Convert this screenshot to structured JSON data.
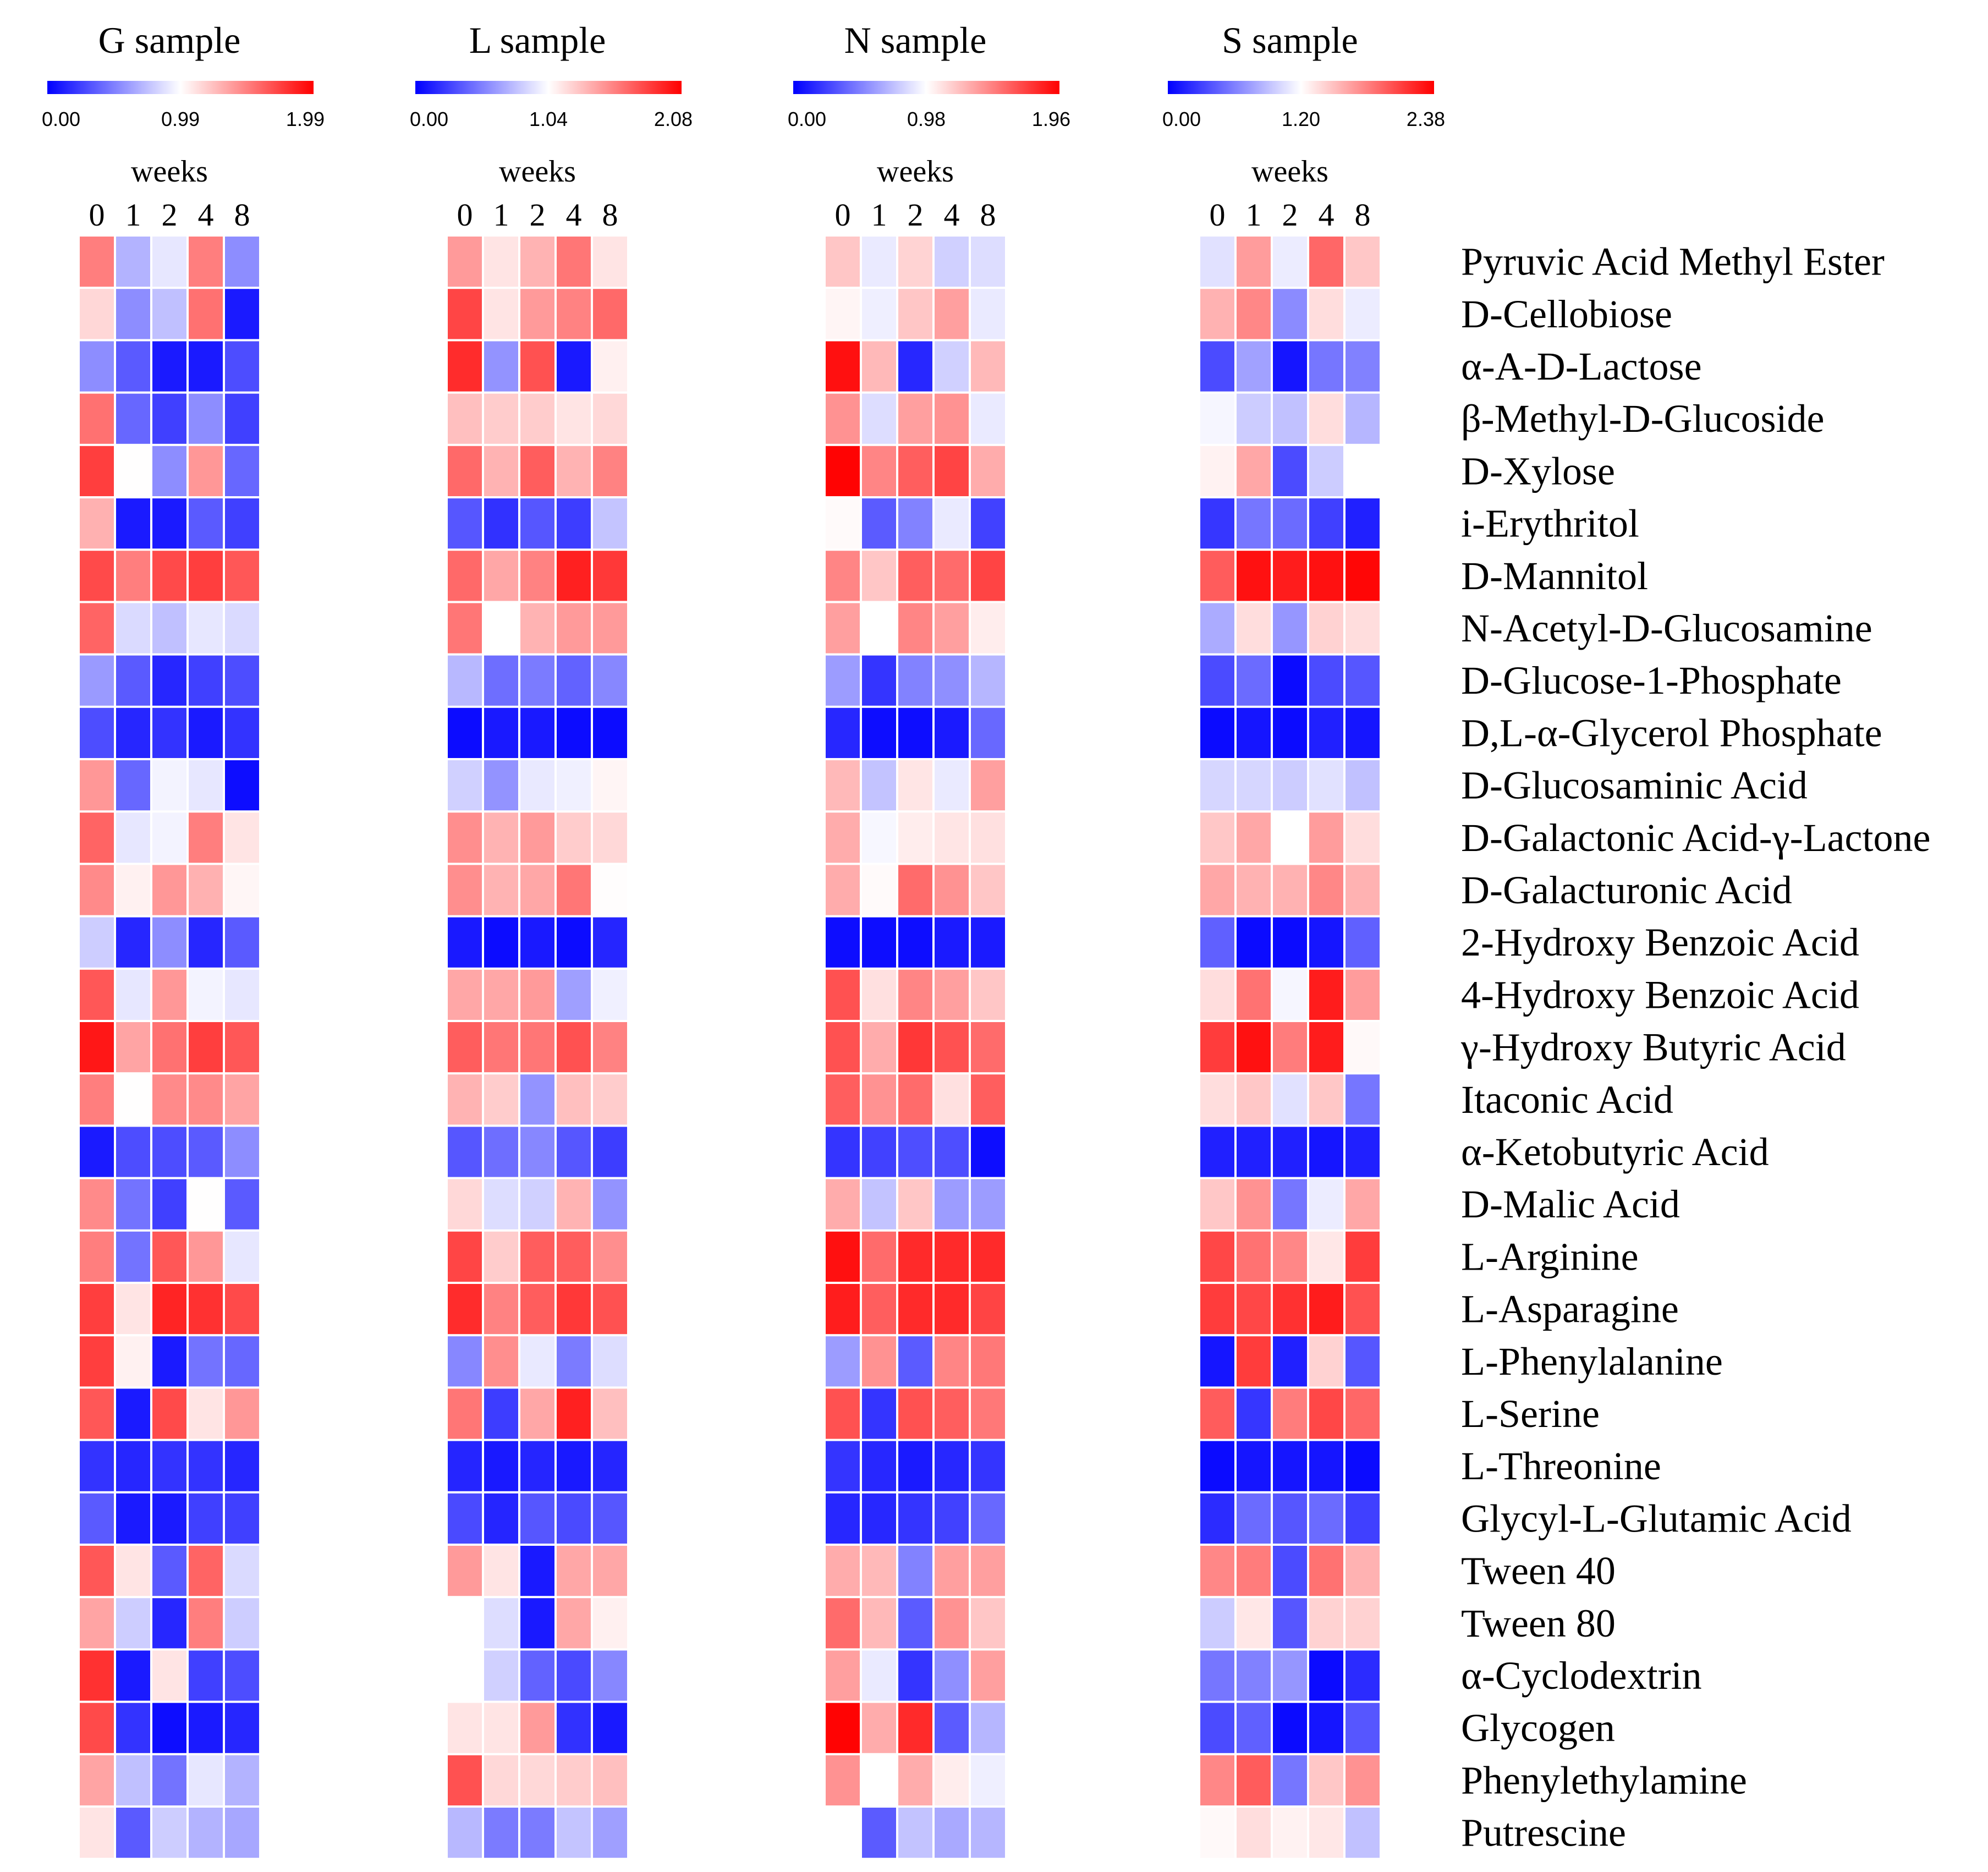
{
  "chart_data": {
    "type": "heatmap",
    "color_scale": {
      "low": "#0000ff",
      "mid": "#ffffff",
      "high": "#ff0000"
    },
    "x_title": "weeks",
    "x": [
      "0",
      "1",
      "2",
      "4",
      "8"
    ],
    "rows": [
      "Pyruvic Acid Methyl Ester",
      "D-Cellobiose",
      "α-A-D-Lactose",
      "β-Methyl-D-Glucoside",
      "D-Xylose",
      "i-Erythritol",
      "D-Mannitol",
      "N-Acetyl-D-Glucosamine",
      "D-Glucose-1-Phosphate",
      "D,L-α-Glycerol Phosphate",
      "D-Glucosaminic Acid",
      "D-Galactonic Acid-γ-Lactone",
      "D-Galacturonic Acid",
      "2-Hydroxy Benzoic Acid",
      "4-Hydroxy Benzoic Acid",
      "γ-Hydroxy Butyric Acid",
      "Itaconic Acid",
      "α-Ketobutyric Acid",
      "D-Malic Acid",
      "L-Arginine",
      "L-Asparagine",
      "L-Phenylalanine",
      "L-Serine",
      "L-Threonine",
      "Glycyl-L-Glutamic Acid",
      "Tween 40",
      "Tween 80",
      "α-Cyclodextrin",
      "Glycogen",
      "Phenylethylamine",
      "Putrescine"
    ],
    "panels": [
      {
        "title": "G sample",
        "min_label": "0.00",
        "mid_label": "0.99",
        "max_label": "1.99",
        "min": 0.0,
        "max": 1.99,
        "values": [
          [
            1.5,
            0.7,
            0.9,
            1.5,
            0.55
          ],
          [
            1.15,
            0.55,
            0.75,
            1.55,
            0.1
          ],
          [
            0.55,
            0.35,
            0.1,
            0.1,
            0.3
          ],
          [
            1.55,
            0.4,
            0.25,
            0.55,
            0.25
          ],
          [
            1.75,
            1.0,
            0.55,
            1.4,
            0.4
          ],
          [
            1.3,
            0.1,
            0.1,
            0.35,
            0.25
          ],
          [
            1.7,
            1.5,
            1.7,
            1.75,
            1.65
          ],
          [
            1.6,
            0.85,
            0.75,
            0.9,
            0.85
          ],
          [
            0.6,
            0.35,
            0.15,
            0.25,
            0.3
          ],
          [
            0.3,
            0.15,
            0.2,
            0.1,
            0.2
          ],
          [
            1.4,
            0.4,
            0.95,
            0.9,
            0.05
          ],
          [
            1.6,
            0.9,
            0.95,
            1.5,
            1.1
          ],
          [
            1.45,
            1.05,
            1.4,
            1.3,
            1.03
          ],
          [
            0.8,
            0.15,
            0.55,
            0.15,
            0.35
          ],
          [
            1.65,
            0.9,
            1.4,
            0.95,
            0.9
          ],
          [
            1.9,
            1.35,
            1.55,
            1.75,
            1.65
          ],
          [
            1.5,
            1.0,
            1.45,
            1.45,
            1.35
          ],
          [
            0.1,
            0.3,
            0.3,
            0.35,
            0.55
          ],
          [
            1.45,
            0.45,
            0.25,
            1.0,
            0.35
          ],
          [
            1.5,
            0.45,
            1.65,
            1.4,
            0.9
          ],
          [
            1.75,
            1.1,
            1.85,
            1.8,
            1.7
          ],
          [
            1.75,
            1.05,
            0.1,
            0.45,
            0.4
          ],
          [
            1.65,
            0.1,
            1.7,
            1.1,
            1.4
          ],
          [
            0.2,
            0.15,
            0.2,
            0.2,
            0.15
          ],
          [
            0.35,
            0.1,
            0.1,
            0.25,
            0.25
          ],
          [
            1.65,
            1.1,
            0.35,
            1.6,
            0.85
          ],
          [
            1.35,
            0.8,
            0.15,
            1.5,
            0.8
          ],
          [
            1.8,
            0.1,
            1.1,
            0.25,
            0.3
          ],
          [
            1.7,
            0.2,
            0.05,
            0.1,
            0.15
          ],
          [
            1.35,
            0.75,
            0.45,
            0.9,
            0.7
          ],
          [
            1.1,
            0.35,
            0.8,
            0.7,
            0.65
          ]
        ]
      },
      {
        "title": "L sample",
        "min_label": "0.00",
        "mid_label": "1.04",
        "max_label": "2.08",
        "min": 0.0,
        "max": 2.08,
        "values": [
          [
            1.45,
            1.15,
            1.35,
            1.6,
            1.15
          ],
          [
            1.8,
            1.15,
            1.45,
            1.55,
            1.65
          ],
          [
            1.9,
            0.6,
            1.75,
            0.1,
            1.1
          ],
          [
            1.3,
            1.25,
            1.25,
            1.15,
            1.2
          ],
          [
            1.65,
            1.35,
            1.7,
            1.35,
            1.55
          ],
          [
            0.35,
            0.2,
            0.35,
            0.25,
            0.8
          ],
          [
            1.65,
            1.4,
            1.55,
            1.95,
            1.85
          ],
          [
            1.6,
            1.04,
            1.35,
            1.45,
            1.45
          ],
          [
            0.75,
            0.45,
            0.5,
            0.4,
            0.55
          ],
          [
            0.05,
            0.1,
            0.1,
            0.05,
            0.05
          ],
          [
            0.85,
            0.6,
            0.95,
            0.98,
            1.08
          ],
          [
            1.5,
            1.35,
            1.45,
            1.25,
            1.2
          ],
          [
            1.5,
            1.35,
            1.4,
            1.6,
            1.05
          ],
          [
            0.1,
            0.05,
            0.1,
            0.05,
            0.15
          ],
          [
            1.4,
            1.4,
            1.45,
            0.65,
            0.98
          ],
          [
            1.7,
            1.6,
            1.6,
            1.75,
            1.55
          ],
          [
            1.35,
            1.25,
            0.6,
            1.3,
            1.25
          ],
          [
            0.35,
            0.45,
            0.55,
            0.35,
            0.25
          ],
          [
            1.2,
            0.9,
            0.85,
            1.35,
            0.6
          ],
          [
            1.8,
            1.25,
            1.7,
            1.7,
            1.5
          ],
          [
            1.9,
            1.55,
            1.7,
            1.85,
            1.75
          ],
          [
            0.55,
            1.5,
            0.95,
            0.5,
            0.9
          ],
          [
            1.6,
            0.25,
            1.4,
            1.95,
            1.3
          ],
          [
            0.15,
            0.1,
            0.15,
            0.1,
            0.15
          ],
          [
            0.3,
            0.15,
            0.35,
            0.3,
            0.35
          ],
          [
            1.45,
            1.15,
            0.1,
            1.4,
            1.4
          ],
          [
            1.04,
            0.9,
            0.1,
            1.4,
            1.1
          ],
          [
            1.04,
            0.85,
            0.4,
            0.3,
            0.55
          ],
          [
            1.15,
            1.15,
            1.45,
            0.2,
            0.1
          ],
          [
            1.75,
            1.2,
            1.2,
            1.25,
            1.3
          ],
          [
            0.75,
            0.5,
            0.5,
            0.8,
            0.65
          ]
        ]
      },
      {
        "title": "N sample",
        "min_label": "0.00",
        "mid_label": "0.98",
        "max_label": "1.96",
        "min": 0.0,
        "max": 1.96,
        "values": [
          [
            1.2,
            0.9,
            1.15,
            0.8,
            0.85
          ],
          [
            1.02,
            0.92,
            1.2,
            1.35,
            0.9
          ],
          [
            1.9,
            1.25,
            0.15,
            0.8,
            1.25
          ],
          [
            1.4,
            0.85,
            1.35,
            1.4,
            0.9
          ],
          [
            1.95,
            1.45,
            1.6,
            1.7,
            1.3
          ],
          [
            1.0,
            0.35,
            0.5,
            0.9,
            0.25
          ],
          [
            1.45,
            1.2,
            1.6,
            1.55,
            1.7
          ],
          [
            1.35,
            0.98,
            1.45,
            1.35,
            1.05
          ],
          [
            0.6,
            0.2,
            0.5,
            0.55,
            0.7
          ],
          [
            0.15,
            0.05,
            0.05,
            0.1,
            0.4
          ],
          [
            1.25,
            0.75,
            1.08,
            0.9,
            1.35
          ],
          [
            1.3,
            0.95,
            1.05,
            1.08,
            1.1
          ],
          [
            1.3,
            1.0,
            1.55,
            1.4,
            1.2
          ],
          [
            0.05,
            0.05,
            0.05,
            0.1,
            0.1
          ],
          [
            1.65,
            1.1,
            1.45,
            1.35,
            1.2
          ],
          [
            1.65,
            1.3,
            1.75,
            1.65,
            1.55
          ],
          [
            1.6,
            1.4,
            1.55,
            1.1,
            1.6
          ],
          [
            0.2,
            0.25,
            0.3,
            0.3,
            0.05
          ],
          [
            1.3,
            0.75,
            1.2,
            0.6,
            0.6
          ],
          [
            1.9,
            1.55,
            1.8,
            1.8,
            1.8
          ],
          [
            1.85,
            1.6,
            1.8,
            1.8,
            1.7
          ],
          [
            0.6,
            1.4,
            0.35,
            1.45,
            1.5
          ],
          [
            1.65,
            0.2,
            1.65,
            1.6,
            1.5
          ],
          [
            0.2,
            0.15,
            0.1,
            0.15,
            0.2
          ],
          [
            0.15,
            0.15,
            0.2,
            0.25,
            0.4
          ],
          [
            1.3,
            1.25,
            0.5,
            1.35,
            1.35
          ],
          [
            1.55,
            1.25,
            0.35,
            1.4,
            1.2
          ],
          [
            1.35,
            0.9,
            0.2,
            0.55,
            1.35
          ],
          [
            1.95,
            1.3,
            1.8,
            0.35,
            0.7
          ],
          [
            1.4,
            0.98,
            1.3,
            1.05,
            0.92
          ],
          [
            0.98,
            0.35,
            0.75,
            0.65,
            0.7
          ]
        ]
      },
      {
        "title": "S sample",
        "min_label": "0.00",
        "mid_label": "1.20",
        "max_label": "2.38",
        "min": 0.0,
        "max": 2.38,
        "values": [
          [
            1.05,
            1.65,
            1.1,
            1.9,
            1.45
          ],
          [
            1.55,
            1.75,
            0.65,
            1.35,
            1.1
          ],
          [
            0.35,
            0.75,
            0.1,
            0.55,
            0.6
          ],
          [
            1.15,
            0.95,
            0.9,
            1.35,
            0.85
          ],
          [
            1.25,
            1.6,
            0.35,
            0.95,
            1.19
          ],
          [
            0.25,
            0.55,
            0.5,
            0.3,
            0.15
          ],
          [
            1.95,
            2.3,
            2.25,
            2.3,
            2.35
          ],
          [
            0.8,
            1.35,
            0.7,
            1.4,
            1.35
          ],
          [
            0.35,
            0.5,
            0.05,
            0.35,
            0.4
          ],
          [
            0.05,
            0.1,
            0.05,
            0.15,
            0.1
          ],
          [
            1.0,
            1.0,
            0.95,
            1.05,
            0.9
          ],
          [
            1.45,
            1.6,
            1.19,
            1.65,
            1.35
          ],
          [
            1.6,
            1.55,
            1.55,
            1.75,
            1.55
          ],
          [
            0.45,
            0.05,
            0.05,
            0.1,
            0.45
          ],
          [
            1.35,
            1.85,
            1.15,
            2.25,
            1.65
          ],
          [
            2.1,
            2.3,
            1.8,
            2.25,
            1.22
          ],
          [
            1.35,
            1.45,
            1.05,
            1.45,
            0.55
          ],
          [
            0.15,
            0.15,
            0.15,
            0.1,
            0.15
          ],
          [
            1.45,
            1.7,
            0.55,
            1.1,
            1.6
          ],
          [
            2.05,
            1.85,
            1.75,
            1.3,
            2.1
          ],
          [
            2.1,
            2.05,
            2.15,
            2.25,
            2.0
          ],
          [
            0.1,
            2.1,
            0.15,
            1.4,
            0.4
          ],
          [
            1.95,
            0.25,
            1.8,
            2.05,
            1.9
          ],
          [
            0.05,
            0.1,
            0.1,
            0.1,
            0.05
          ],
          [
            0.2,
            0.5,
            0.4,
            0.5,
            0.3
          ],
          [
            1.75,
            1.8,
            0.35,
            1.85,
            1.55
          ],
          [
            0.95,
            1.3,
            0.4,
            1.4,
            1.4
          ],
          [
            0.55,
            0.6,
            0.7,
            0.05,
            0.2
          ],
          [
            0.35,
            0.45,
            0.05,
            0.1,
            0.4
          ],
          [
            1.75,
            1.95,
            0.55,
            1.45,
            1.7
          ],
          [
            1.22,
            1.35,
            1.25,
            1.3,
            0.9
          ]
        ]
      }
    ]
  }
}
